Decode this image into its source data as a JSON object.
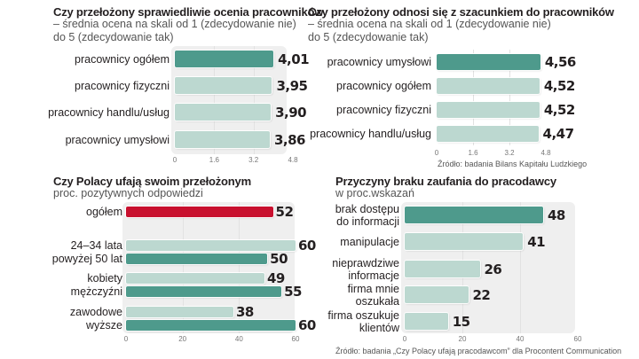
{
  "colors": {
    "dark": "#4e9a8c",
    "light": "#bcd8d0",
    "red": "#c8102e",
    "panel": "#efefef"
  },
  "chart_data": [
    {
      "id": "c1",
      "type": "bar",
      "orientation": "horizontal",
      "title": "Czy przełożony sprawiedliwie ocenia pracowników",
      "subtitle_lines": [
        "– średnia ocena na skali od 1 (zdecydowanie nie)",
        "do 5 (zdecydowanie tak)"
      ],
      "categories": [
        "pracownicy ogółem",
        "pracownicy fizyczni",
        "pracownicy handlu/usług",
        "pracownicy umysłowi"
      ],
      "values": [
        4.01,
        3.95,
        3.9,
        3.86
      ],
      "value_labels": [
        "4,01",
        "3,95",
        "3,90",
        "3,86"
      ],
      "highlight": [
        "dark",
        "light",
        "light",
        "light"
      ],
      "xlim": [
        0,
        4.8
      ],
      "ticks": [
        0,
        1.6,
        3.2,
        4.8
      ],
      "tick_labels": [
        "0",
        "1.6",
        "3.2",
        "4.8"
      ],
      "grid": true
    },
    {
      "id": "c2",
      "type": "bar",
      "orientation": "horizontal",
      "title": "Czy przełożony odnosi się z szacunkiem do pracowników",
      "subtitle_lines": [
        "– średnia ocena na skali od 1 (zdecydowanie nie)",
        "do 5 (zdecydowanie tak)"
      ],
      "categories": [
        "pracownicy umysłowi",
        "pracownicy ogółem",
        "pracownicy fizyczni",
        "pracownicy handlu/usług"
      ],
      "values": [
        4.56,
        4.52,
        4.52,
        4.47
      ],
      "value_labels": [
        "4,56",
        "4,52",
        "4,52",
        "4,47"
      ],
      "highlight": [
        "dark",
        "light",
        "light",
        "light"
      ],
      "xlim": [
        0,
        4.8
      ],
      "ticks": [
        0,
        1.6,
        3.2,
        4.8
      ],
      "tick_labels": [
        "0",
        "1.6",
        "3.2",
        "4.8"
      ],
      "grid": true,
      "source": "Źródło: badania Bilans Kapitału Ludzkiego"
    },
    {
      "id": "c3",
      "type": "bar",
      "orientation": "horizontal",
      "title": "Czy Polacy ufają swoim  przełożonym",
      "subtitle_lines": [
        "proc. pozytywnych odpowiedzi"
      ],
      "groups": [
        {
          "labels": [
            "ogółem"
          ],
          "series": [
            {
              "name": "ogółem",
              "value": 52,
              "label": "52",
              "color": "red"
            }
          ]
        },
        {
          "labels": [
            "24–34 lata",
            "powyżej 50 lat"
          ],
          "series": [
            {
              "name": "24–34 lata",
              "value": 60,
              "label": "60",
              "color": "light"
            },
            {
              "name": "powyżej 50 lat",
              "value": 50,
              "label": "50",
              "color": "dark"
            }
          ]
        },
        {
          "labels": [
            "kobiety",
            "mężczyźni"
          ],
          "series": [
            {
              "name": "kobiety",
              "value": 49,
              "label": "49",
              "color": "light"
            },
            {
              "name": "mężczyźni",
              "value": 55,
              "label": "55",
              "color": "dark"
            }
          ]
        },
        {
          "labels": [
            "zawodowe",
            "wyższe"
          ],
          "series": [
            {
              "name": "zawodowe",
              "value": 38,
              "label": "38",
              "color": "light"
            },
            {
              "name": "wyższe",
              "value": 60,
              "label": "60",
              "color": "dark"
            }
          ]
        }
      ],
      "xlim": [
        0,
        60
      ],
      "ticks": [
        0,
        20,
        40,
        60
      ],
      "tick_labels": [
        "0",
        "20",
        "40",
        "60"
      ],
      "grid": true
    },
    {
      "id": "c4",
      "type": "bar",
      "orientation": "horizontal",
      "title": "Przyczyny braku zaufania do pracodawcy",
      "subtitle_lines": [
        "w proc.wskazań"
      ],
      "categories": [
        [
          "brak dostępu",
          "do informacji"
        ],
        [
          "manipulacje"
        ],
        [
          "nieprawdziwe",
          "informacje"
        ],
        [
          "firma mnie",
          "oszukała"
        ],
        [
          "firma oszukuje",
          "klientów"
        ]
      ],
      "values": [
        48,
        41,
        26,
        22,
        15
      ],
      "value_labels": [
        "48",
        "41",
        "26",
        "22",
        "15"
      ],
      "highlight": [
        "dark",
        "light",
        "light",
        "light",
        "light"
      ],
      "xlim": [
        0,
        60
      ],
      "ticks": [
        0,
        20,
        40,
        60
      ],
      "tick_labels": [
        "0",
        "20",
        "40",
        "60"
      ],
      "grid": true,
      "source": "Źródło: badania „Czy Polacy ufają pracodawcom” dla Procontent Communication"
    }
  ]
}
